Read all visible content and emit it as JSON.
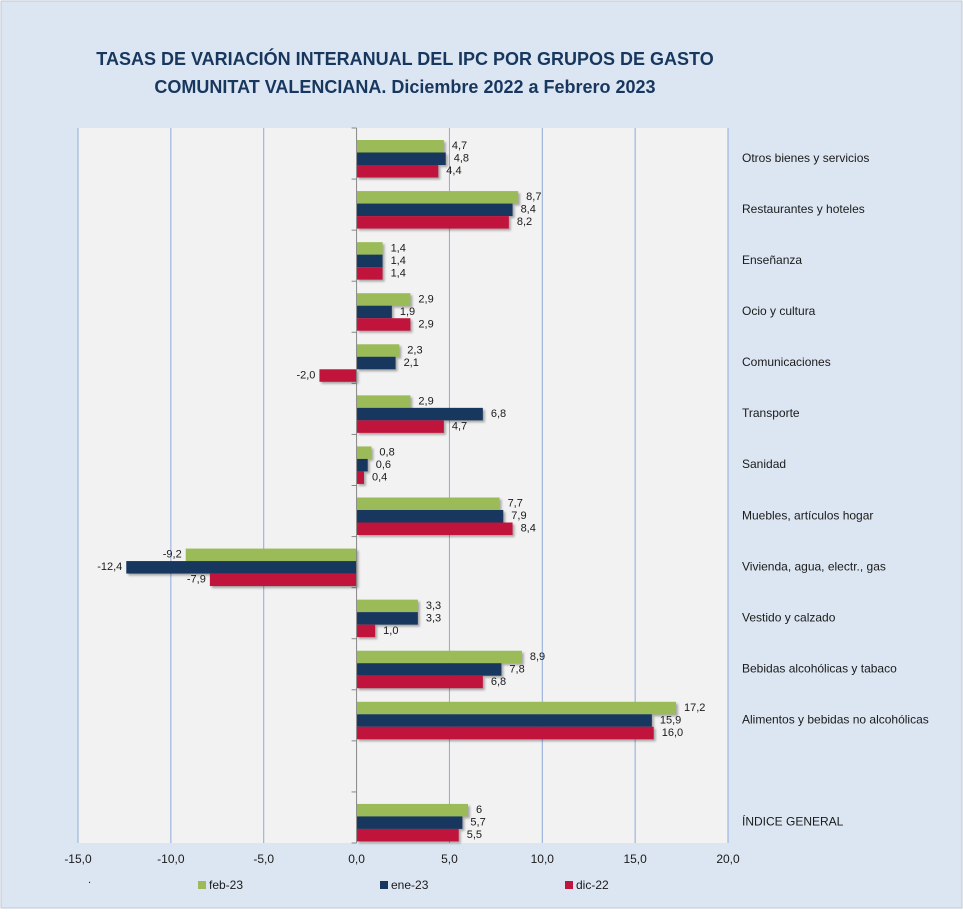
{
  "chart_data": {
    "type": "hbar",
    "title": "TASAS DE VARIACIÓN INTERANUAL DEL IPC POR GRUPOS DE GASTO",
    "subtitle": "COMUNITAT VALENCIANA. Diciembre 2022 a Febrero 2023",
    "footnote": ".",
    "categories": [
      "Otros bienes y servicios",
      "Restaurantes y hoteles",
      "Enseñanza",
      "Ocio y cultura",
      "Comunicaciones",
      "Transporte",
      "Sanidad",
      "Muebles, artículos hogar",
      "Vivienda, agua, electr., gas",
      "Vestido y calzado",
      "Bebidas alcohólicas y tabaco",
      "Alimentos y bebidas no alcohólicas",
      null,
      "ÍNDICE GENERAL"
    ],
    "series": [
      {
        "name": "feb-23",
        "color": "#9bbb59",
        "values": [
          4.7,
          8.7,
          1.4,
          2.9,
          2.3,
          2.9,
          0.8,
          7.7,
          -9.2,
          3.3,
          8.9,
          17.2,
          null,
          6
        ],
        "value_labels": [
          "4,7",
          "8,7",
          "1,4",
          "2,9",
          "2,3",
          "2,9",
          "0,8",
          "7,7",
          "-9,2",
          "3,3",
          "8,9",
          "17,2",
          null,
          "6"
        ]
      },
      {
        "name": "ene-23",
        "color": "#17375e",
        "values": [
          4.8,
          8.4,
          1.4,
          1.9,
          2.1,
          6.8,
          0.6,
          7.9,
          -12.4,
          3.3,
          7.8,
          15.9,
          null,
          5.7
        ],
        "value_labels": [
          "4,8",
          "8,4",
          "1,4",
          "1,9",
          "2,1",
          "6,8",
          "0,6",
          "7,9",
          "-12,4",
          "3,3",
          "7,8",
          "15,9",
          null,
          "5,7"
        ]
      },
      {
        "name": "dic-22",
        "color": "#c0143c",
        "values": [
          4.4,
          8.2,
          1.4,
          2.9,
          -2.0,
          4.7,
          0.4,
          8.4,
          -7.9,
          1.0,
          6.8,
          16.0,
          null,
          5.5
        ],
        "value_labels": [
          "4,4",
          "8,2",
          "1,4",
          "2,9",
          "-2,0",
          "4,7",
          "0,4",
          "8,4",
          "-7,9",
          "1,0",
          "6,8",
          "16,0",
          null,
          "5,5"
        ]
      }
    ],
    "xlim": [
      -15,
      20
    ],
    "xticks": [
      {
        "value": -15,
        "label": "-15,0"
      },
      {
        "value": -10,
        "label": "-10,0"
      },
      {
        "value": -5,
        "label": "-5,0"
      },
      {
        "value": 0,
        "label": "0,0"
      },
      {
        "value": 5,
        "label": "5,0"
      },
      {
        "value": 10,
        "label": "10,0"
      },
      {
        "value": 15,
        "label": "15,0"
      },
      {
        "value": 20,
        "label": "20,0"
      }
    ],
    "grid": true,
    "legend": "bottom"
  }
}
